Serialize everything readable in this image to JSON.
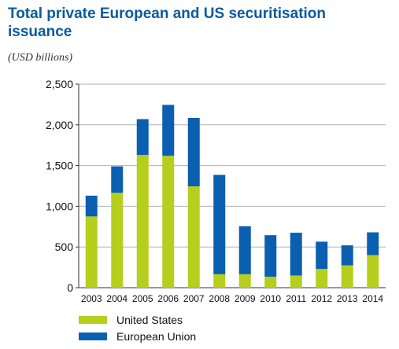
{
  "page": {
    "title": "Total private European and US securitisation issuance",
    "unit": "(USD billions)"
  },
  "chart_data": {
    "type": "bar",
    "stacked": true,
    "categories": [
      "2003",
      "2004",
      "2005",
      "2006",
      "2007",
      "2008",
      "2009",
      "2010",
      "2011",
      "2012",
      "2013",
      "2014"
    ],
    "series": [
      {
        "name": "United States",
        "color": "#b5cf1c",
        "values": [
          875,
          1165,
          1630,
          1620,
          1245,
          165,
          165,
          135,
          150,
          230,
          275,
          400
        ]
      },
      {
        "name": "European Union",
        "color": "#0b5fb0",
        "values": [
          255,
          325,
          440,
          625,
          840,
          1220,
          590,
          510,
          525,
          335,
          245,
          280
        ]
      }
    ],
    "ylim": [
      0,
      2500
    ],
    "yticks": [
      "0",
      "500",
      "1,000",
      "1,500",
      "2,000",
      "2,500"
    ],
    "ytick_values": [
      0,
      500,
      1000,
      1500,
      2000,
      2500
    ],
    "grid": true,
    "legend_position": "bottom-left"
  }
}
